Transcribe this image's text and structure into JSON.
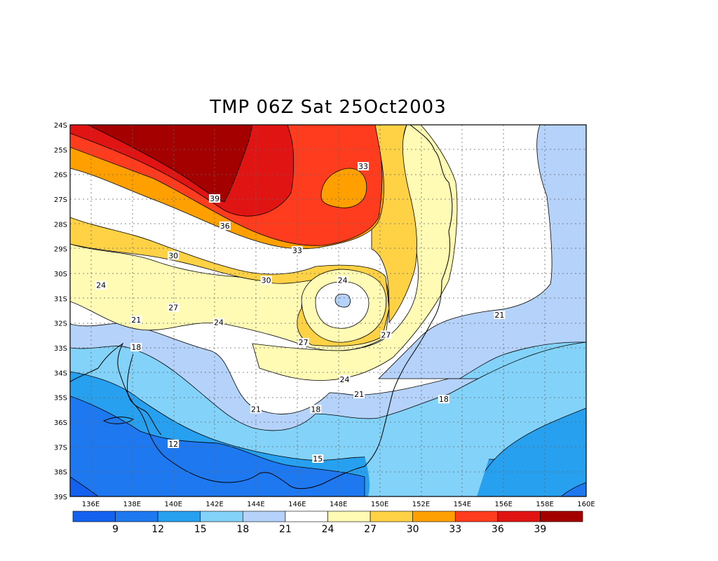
{
  "title": "TMP 06Z Sat 25Oct2003",
  "map": {
    "lon_labels": [
      "136E",
      "138E",
      "140E",
      "142E",
      "144E",
      "146E",
      "148E",
      "150E",
      "152E",
      "154E",
      "156E",
      "158E",
      "160E"
    ],
    "lat_labels": [
      "24S",
      "25S",
      "26S",
      "27S",
      "28S",
      "29S",
      "30S",
      "31S",
      "32S",
      "33S",
      "34S",
      "35S",
      "36S",
      "37S",
      "38S",
      "39S"
    ],
    "grid": true,
    "variable": "TMP",
    "contour_labels": [
      {
        "value": "39",
        "lon": 142,
        "lat": -27.0
      },
      {
        "value": "36",
        "lon": 142.5,
        "lat": -28.1
      },
      {
        "value": "33",
        "lon": 149.2,
        "lat": -25.7
      },
      {
        "value": "33",
        "lon": 146,
        "lat": -29.1
      },
      {
        "value": "30",
        "lon": 140,
        "lat": -29.3
      },
      {
        "value": "30",
        "lon": 144.5,
        "lat": -30.3
      },
      {
        "value": "24",
        "lon": 136.5,
        "lat": -30.5
      },
      {
        "value": "24",
        "lon": 148.2,
        "lat": -30.3
      },
      {
        "value": "27",
        "lon": 140,
        "lat": -31.4
      },
      {
        "value": "27",
        "lon": 146.3,
        "lat": -32.8
      },
      {
        "value": "27",
        "lon": 150.3,
        "lat": -32.5
      },
      {
        "value": "24",
        "lon": 142.2,
        "lat": -32.0
      },
      {
        "value": "21",
        "lon": 138.2,
        "lat": -31.9
      },
      {
        "value": "21",
        "lon": 155.8,
        "lat": -31.7
      },
      {
        "value": "18",
        "lon": 138.2,
        "lat": -33.0
      },
      {
        "value": "24",
        "lon": 148.3,
        "lat": -34.3
      },
      {
        "value": "21",
        "lon": 149,
        "lat": -34.9
      },
      {
        "value": "21",
        "lon": 144,
        "lat": -35.5
      },
      {
        "value": "18",
        "lon": 146.9,
        "lat": -35.5
      },
      {
        "value": "18",
        "lon": 153.1,
        "lat": -35.1
      },
      {
        "value": "12",
        "lon": 140,
        "lat": -36.9
      },
      {
        "value": "15",
        "lon": 147,
        "lat": -37.5
      }
    ]
  },
  "colorbar": {
    "labels": [
      "9",
      "12",
      "15",
      "18",
      "21",
      "24",
      "27",
      "30",
      "33",
      "36",
      "39"
    ],
    "colors": [
      "#1461f0",
      "#1e78ef",
      "#28a0f0",
      "#82d2fa",
      "#b4d2fa",
      "#ffffff",
      "#fffab4",
      "#ffd246",
      "#ffa000",
      "#ff3c1e",
      "#e11414",
      "#a50000"
    ]
  },
  "colors": {
    "c9": "#1461f0",
    "c12": "#1e78ef",
    "c15": "#28a0f0",
    "c18": "#82d2fa",
    "c21": "#b4d2fa",
    "c24": "#ffffff",
    "c27": "#fffab4",
    "c30": "#ffd246",
    "c33": "#ffa000",
    "c36": "#ff3c1e",
    "c39": "#e11414",
    "c42": "#a50000"
  }
}
